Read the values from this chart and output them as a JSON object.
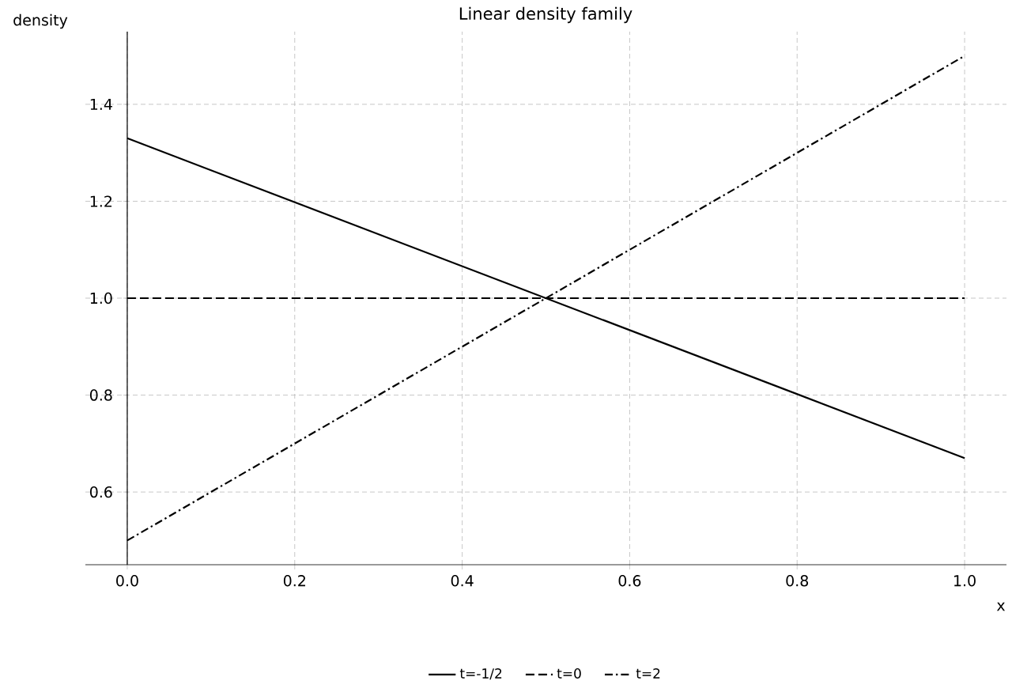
{
  "chart_data": {
    "type": "line",
    "title": "Linear density family",
    "xlabel": "x",
    "ylabel": "density",
    "x": [
      0,
      1
    ],
    "series": [
      {
        "name": "t=-1/2",
        "color": "#000000",
        "line_style": "solid",
        "values": [
          1.33,
          0.67
        ]
      },
      {
        "name": "t=0",
        "color": "#000000",
        "line_style": "dashed",
        "values": [
          1,
          1
        ]
      },
      {
        "name": "t=2",
        "color": "#000000",
        "line_style": "dashdot",
        "values": [
          0.5,
          1.5
        ]
      }
    ],
    "xlim": [
      -0.05,
      1.05
    ],
    "ylim": [
      0.45,
      1.55
    ],
    "xticks": [
      {
        "value": 0,
        "label": "0.0"
      },
      0.2,
      0.4,
      0.6,
      0.8,
      {
        "value": 1,
        "label": "1.0"
      }
    ],
    "yticks": [
      0.6,
      0.8,
      {
        "value": 1,
        "label": "1.0"
      },
      1.2,
      1.4
    ],
    "grid": true,
    "legend": "bottom",
    "marker": "none"
  }
}
